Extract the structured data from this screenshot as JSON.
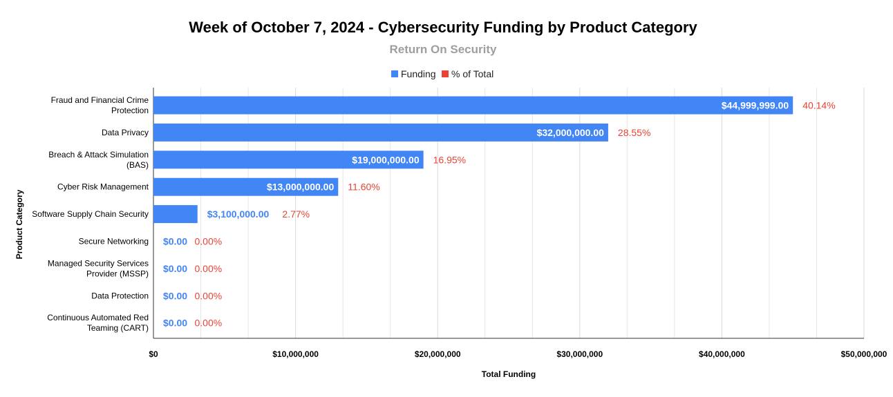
{
  "chart_data": {
    "type": "bar",
    "orientation": "horizontal",
    "title": "Week of October 7, 2024 - Cybersecurity Funding by Product Category",
    "subtitle": "Return On Security",
    "xlabel": "Total Funding",
    "ylabel": "Product Category",
    "xlim": [
      0,
      50000000
    ],
    "x_ticks": [
      "$0",
      "$10,000,000",
      "$20,000,000",
      "$30,000,000",
      "$40,000,000",
      "$50,000,000"
    ],
    "x_tick_values": [
      0,
      10000000,
      20000000,
      30000000,
      40000000,
      50000000
    ],
    "legend": {
      "position": "top",
      "entries": [
        {
          "name": "Funding",
          "color": "#4285f4"
        },
        {
          "name": "% of Total",
          "color": "#ea4335"
        }
      ]
    },
    "categories": [
      [
        "Fraud and Financial Crime",
        "Protection"
      ],
      [
        "Data Privacy"
      ],
      [
        "Breach & Attack Simulation",
        "(BAS)"
      ],
      [
        "Cyber Risk Management"
      ],
      [
        "Software Supply Chain Security"
      ],
      [
        "Secure Networking"
      ],
      [
        "Managed Security Services",
        "Provider (MSSP)"
      ],
      [
        "Data Protection"
      ],
      [
        "Continuous Automated Red",
        "Teaming (CART)"
      ]
    ],
    "values": [
      44999999,
      32000000,
      19000000,
      13000000,
      3100000,
      0,
      0,
      0,
      0
    ],
    "value_labels": [
      "$44,999,999.00",
      "$32,000,000.00",
      "$19,000,000.00",
      "$13,000,000.00",
      "$3,100,000.00",
      "$0.00",
      "$0.00",
      "$0.00",
      "$0.00"
    ],
    "percent_labels": [
      "40.14%",
      "28.55%",
      "16.95%",
      "11.60%",
      "2.77%",
      "0.00%",
      "0.00%",
      "0.00%",
      "0.00%"
    ],
    "grid": true,
    "colors": {
      "bar": "#4285f4",
      "percent": "#ea4335",
      "grid": "#e6e6e6"
    }
  }
}
